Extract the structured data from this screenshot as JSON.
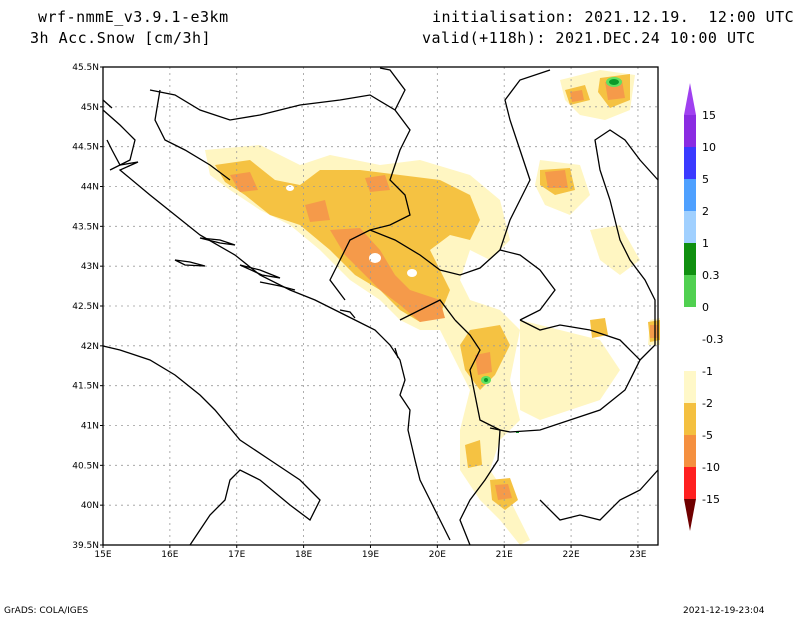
{
  "header": {
    "model": "wrf-nmmE_v3.9.1-e3km",
    "field": "3h Acc.Snow [cm/3h]",
    "init": "initialisation: 2021.12.19.  12:00 UTC",
    "valid": "valid(+118h): 2021.DEC.24 10:00 UTC"
  },
  "footer": {
    "left": "GrADS: COLA/IGES",
    "right": "2021-12-19-23:04"
  },
  "map": {
    "lon_labels": [
      "15E",
      "16E",
      "17E",
      "18E",
      "19E",
      "20E",
      "21E",
      "22E",
      "23E"
    ],
    "lat_labels": [
      "39.5N",
      "40N",
      "40.5N",
      "41N",
      "41.5N",
      "42N",
      "42.5N",
      "43N",
      "43.5N",
      "44N",
      "44.5N",
      "45N",
      "45.5N"
    ],
    "lon_range": [
      15,
      23.3
    ],
    "lat_range": [
      39.5,
      45.5
    ],
    "grid": true
  },
  "legend": {
    "labels": [
      "15",
      "10",
      "5",
      "2",
      "1",
      "0.3",
      "0",
      "-0.3",
      "-1",
      "-2",
      "-5",
      "-10",
      "-15"
    ],
    "colors": [
      "#8a2be2",
      "#3a3aff",
      "#4ea0ff",
      "#a0d0ff",
      "#109010",
      "#50d050",
      "#ffffff",
      "#fff8c8",
      "#f4c040",
      "#f59040",
      "#ff2020",
      "#c00000",
      "#800000"
    ],
    "top_triangle_color": "#a040f0",
    "bottom_triangle_color": "#700000"
  },
  "colors": {
    "light_yellow": "#fff6c2",
    "yellow": "#f5c242",
    "orange": "#f59a4a",
    "light_green": "#60e060",
    "green": "#0a9a2a"
  }
}
